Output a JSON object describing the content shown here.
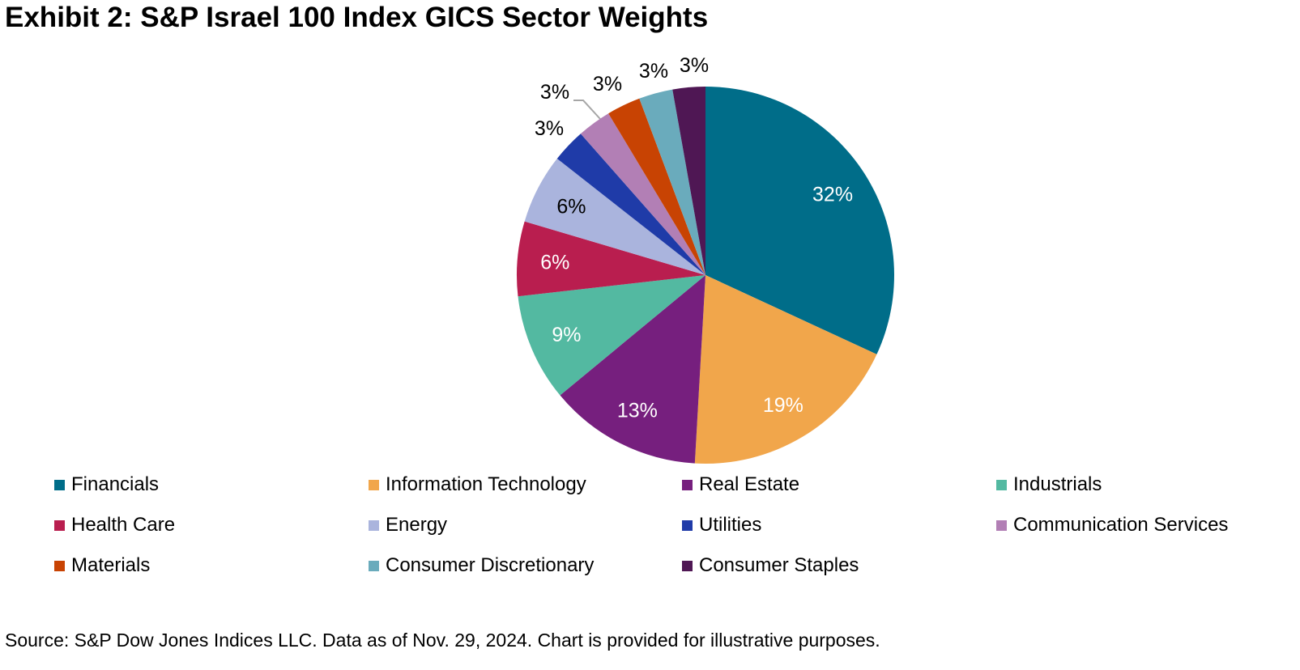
{
  "title": "Exhibit 2: S&P Israel 100 Index GICS Sector Weights",
  "source": "Source: S&P Dow Jones Indices LLC. Data as of Nov. 29, 2024. Chart is provided for illustrative purposes.",
  "chart_data": {
    "type": "pie",
    "title": "Exhibit 2: S&P Israel 100 Index GICS Sector Weights",
    "legend_position": "bottom",
    "slices": [
      {
        "name": "Financials",
        "value": 31.9,
        "label": "32%",
        "color": "#006d89"
      },
      {
        "name": "Information Technology",
        "value": 19.0,
        "label": "19%",
        "color": "#f1a64b"
      },
      {
        "name": "Real Estate",
        "value": 13.1,
        "label": "13%",
        "color": "#761f7e"
      },
      {
        "name": "Industrials",
        "value": 9.2,
        "label": "9%",
        "color": "#53b9a1"
      },
      {
        "name": "Health Care",
        "value": 6.4,
        "label": "6%",
        "color": "#b91e4f"
      },
      {
        "name": "Energy",
        "value": 6.0,
        "label": "6%",
        "color": "#aab4dd"
      },
      {
        "name": "Utilities",
        "value": 2.9,
        "label": "3%",
        "color": "#1f3ba8"
      },
      {
        "name": "Communication Services",
        "value": 2.9,
        "label": "3%",
        "color": "#b27fb5"
      },
      {
        "name": "Materials",
        "value": 2.9,
        "label": "3%",
        "color": "#c84303"
      },
      {
        "name": "Consumer Discretionary",
        "value": 2.9,
        "label": "3%",
        "color": "#6aabbc"
      },
      {
        "name": "Consumer Staples",
        "value": 2.8,
        "label": "3%",
        "color": "#4f1754"
      }
    ]
  }
}
